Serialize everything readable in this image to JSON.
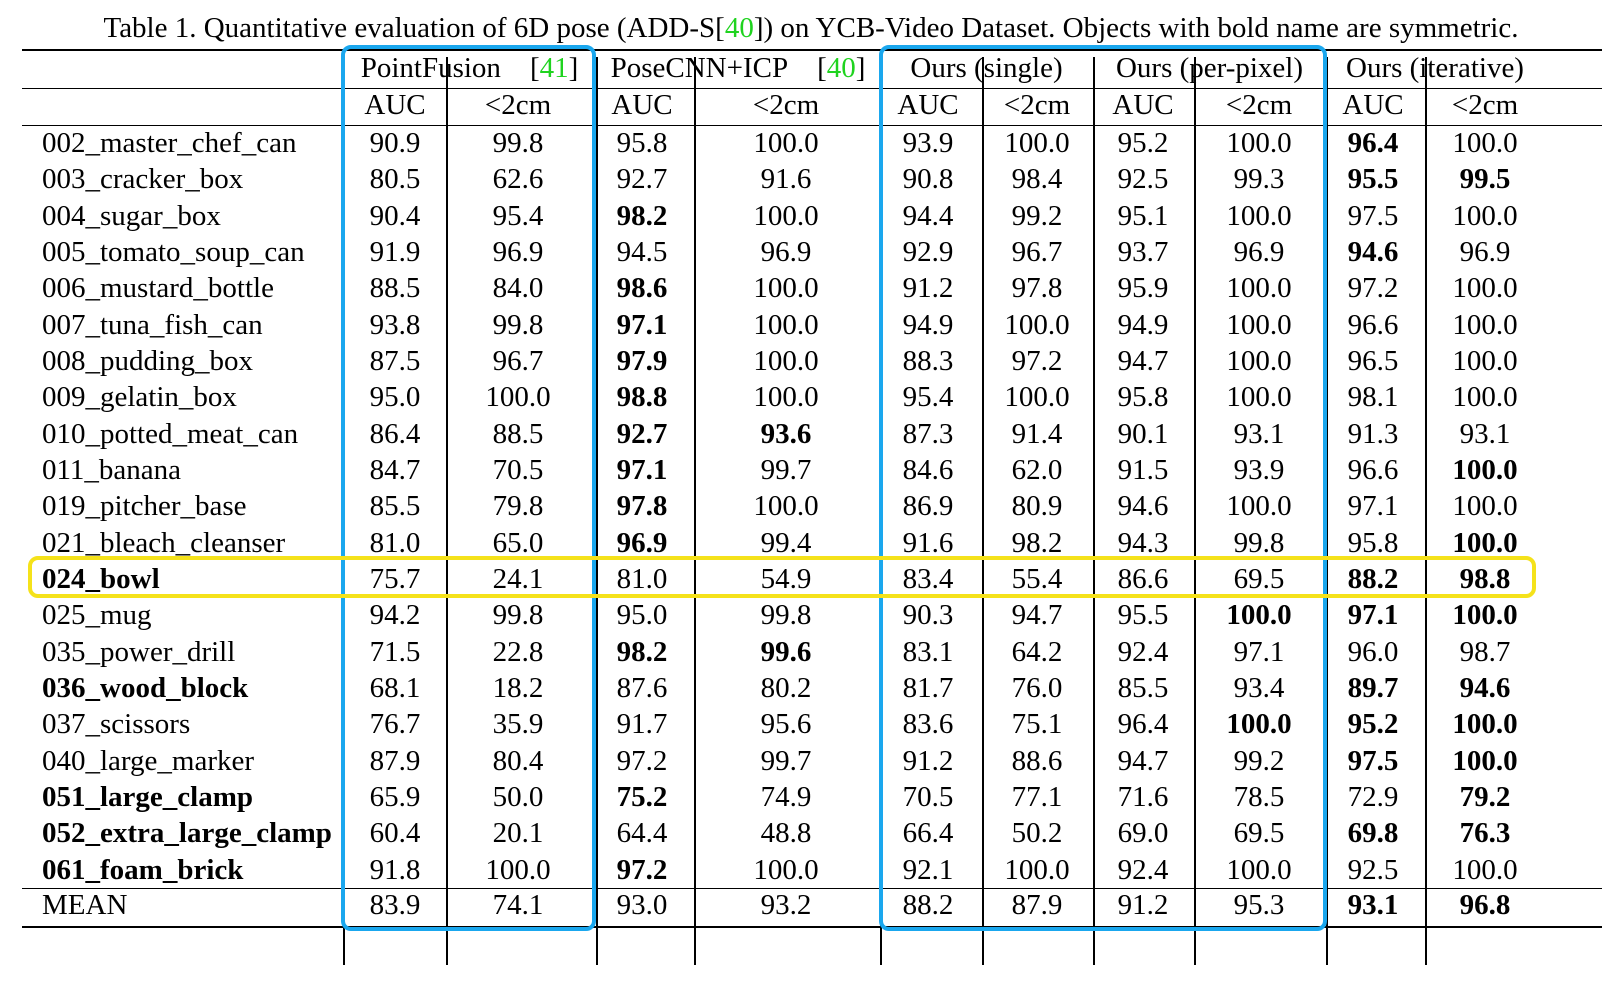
{
  "caption": {
    "before": "Table 1. Quantitative evaluation of 6D pose (ADD-S[",
    "ref": "40",
    "after": "]) on YCB-Video Dataset. Objects with bold name are symmetric."
  },
  "methods": [
    {
      "name": "PointFusion",
      "ref": "41"
    },
    {
      "name": "PoseCNN+ICP",
      "ref": "40"
    },
    {
      "name": "Ours (single)",
      "ref": ""
    },
    {
      "name": "Ours (per-pixel)",
      "ref": ""
    },
    {
      "name": "Ours (iterative)",
      "ref": ""
    }
  ],
  "metrics": [
    "AUC",
    "<2cm"
  ],
  "rows": [
    {
      "name": "002_master_chef_can",
      "symmetric": false,
      "values": [
        "90.9",
        "99.8",
        "95.8",
        "100.0",
        "93.9",
        "100.0",
        "95.2",
        "100.0",
        "96.4",
        "100.0"
      ],
      "bold": [
        8
      ]
    },
    {
      "name": "003_cracker_box",
      "symmetric": false,
      "values": [
        "80.5",
        "62.6",
        "92.7",
        "91.6",
        "90.8",
        "98.4",
        "92.5",
        "99.3",
        "95.5",
        "99.5"
      ],
      "bold": [
        8,
        9
      ]
    },
    {
      "name": "004_sugar_box",
      "symmetric": false,
      "values": [
        "90.4",
        "95.4",
        "98.2",
        "100.0",
        "94.4",
        "99.2",
        "95.1",
        "100.0",
        "97.5",
        "100.0"
      ],
      "bold": [
        2
      ]
    },
    {
      "name": "005_tomato_soup_can",
      "symmetric": false,
      "values": [
        "91.9",
        "96.9",
        "94.5",
        "96.9",
        "92.9",
        "96.7",
        "93.7",
        "96.9",
        "94.6",
        "96.9"
      ],
      "bold": [
        8
      ]
    },
    {
      "name": "006_mustard_bottle",
      "symmetric": false,
      "values": [
        "88.5",
        "84.0",
        "98.6",
        "100.0",
        "91.2",
        "97.8",
        "95.9",
        "100.0",
        "97.2",
        "100.0"
      ],
      "bold": [
        2
      ]
    },
    {
      "name": "007_tuna_fish_can",
      "symmetric": false,
      "values": [
        "93.8",
        "99.8",
        "97.1",
        "100.0",
        "94.9",
        "100.0",
        "94.9",
        "100.0",
        "96.6",
        "100.0"
      ],
      "bold": [
        2
      ]
    },
    {
      "name": "008_pudding_box",
      "symmetric": false,
      "values": [
        "87.5",
        "96.7",
        "97.9",
        "100.0",
        "88.3",
        "97.2",
        "94.7",
        "100.0",
        "96.5",
        "100.0"
      ],
      "bold": [
        2
      ]
    },
    {
      "name": "009_gelatin_box",
      "symmetric": false,
      "values": [
        "95.0",
        "100.0",
        "98.8",
        "100.0",
        "95.4",
        "100.0",
        "95.8",
        "100.0",
        "98.1",
        "100.0"
      ],
      "bold": [
        2
      ]
    },
    {
      "name": "010_potted_meat_can",
      "symmetric": false,
      "values": [
        "86.4",
        "88.5",
        "92.7",
        "93.6",
        "87.3",
        "91.4",
        "90.1",
        "93.1",
        "91.3",
        "93.1"
      ],
      "bold": [
        2,
        3
      ]
    },
    {
      "name": "011_banana",
      "symmetric": false,
      "values": [
        "84.7",
        "70.5",
        "97.1",
        "99.7",
        "84.6",
        "62.0",
        "91.5",
        "93.9",
        "96.6",
        "100.0"
      ],
      "bold": [
        2,
        9
      ]
    },
    {
      "name": "019_pitcher_base",
      "symmetric": false,
      "values": [
        "85.5",
        "79.8",
        "97.8",
        "100.0",
        "86.9",
        "80.9",
        "94.6",
        "100.0",
        "97.1",
        "100.0"
      ],
      "bold": [
        2
      ]
    },
    {
      "name": "021_bleach_cleanser",
      "symmetric": false,
      "values": [
        "81.0",
        "65.0",
        "96.9",
        "99.4",
        "91.6",
        "98.2",
        "94.3",
        "99.8",
        "95.8",
        "100.0"
      ],
      "bold": [
        2,
        9
      ]
    },
    {
      "name": "024_bowl",
      "symmetric": true,
      "values": [
        "75.7",
        "24.1",
        "81.0",
        "54.9",
        "83.4",
        "55.4",
        "86.6",
        "69.5",
        "88.2",
        "98.8"
      ],
      "bold": [
        8,
        9
      ]
    },
    {
      "name": "025_mug",
      "symmetric": false,
      "values": [
        "94.2",
        "99.8",
        "95.0",
        "99.8",
        "90.3",
        "94.7",
        "95.5",
        "100.0",
        "97.1",
        "100.0"
      ],
      "bold": [
        7,
        8,
        9
      ]
    },
    {
      "name": "035_power_drill",
      "symmetric": false,
      "values": [
        "71.5",
        "22.8",
        "98.2",
        "99.6",
        "83.1",
        "64.2",
        "92.4",
        "97.1",
        "96.0",
        "98.7"
      ],
      "bold": [
        2,
        3
      ]
    },
    {
      "name": "036_wood_block",
      "symmetric": true,
      "values": [
        "68.1",
        "18.2",
        "87.6",
        "80.2",
        "81.7",
        "76.0",
        "85.5",
        "93.4",
        "89.7",
        "94.6"
      ],
      "bold": [
        8,
        9
      ]
    },
    {
      "name": "037_scissors",
      "symmetric": false,
      "values": [
        "76.7",
        "35.9",
        "91.7",
        "95.6",
        "83.6",
        "75.1",
        "96.4",
        "100.0",
        "95.2",
        "100.0"
      ],
      "bold": [
        7,
        8,
        9
      ]
    },
    {
      "name": "040_large_marker",
      "symmetric": false,
      "values": [
        "87.9",
        "80.4",
        "97.2",
        "99.7",
        "91.2",
        "88.6",
        "94.7",
        "99.2",
        "97.5",
        "100.0"
      ],
      "bold": [
        8,
        9
      ]
    },
    {
      "name": "051_large_clamp",
      "symmetric": true,
      "values": [
        "65.9",
        "50.0",
        "75.2",
        "74.9",
        "70.5",
        "77.1",
        "71.6",
        "78.5",
        "72.9",
        "79.2"
      ],
      "bold": [
        2,
        9
      ]
    },
    {
      "name": "052_extra_large_clamp",
      "symmetric": true,
      "values": [
        "60.4",
        "20.1",
        "64.4",
        "48.8",
        "66.4",
        "50.2",
        "69.0",
        "69.5",
        "69.8",
        "76.3"
      ],
      "bold": [
        8,
        9
      ]
    },
    {
      "name": "061_foam_brick",
      "symmetric": true,
      "values": [
        "91.8",
        "100.0",
        "97.2",
        "100.0",
        "92.1",
        "100.0",
        "92.4",
        "100.0",
        "92.5",
        "100.0"
      ],
      "bold": [
        2
      ]
    }
  ],
  "mean": {
    "name": "MEAN",
    "values": [
      "83.9",
      "74.1",
      "93.0",
      "93.2",
      "88.2",
      "87.9",
      "91.2",
      "95.3",
      "93.1",
      "96.8"
    ],
    "bold": [
      8,
      9
    ]
  },
  "colors": {
    "blue_highlight": "#1aa7ee",
    "yellow_highlight": "#f5e21a",
    "ref_green": "#1fd31f"
  }
}
